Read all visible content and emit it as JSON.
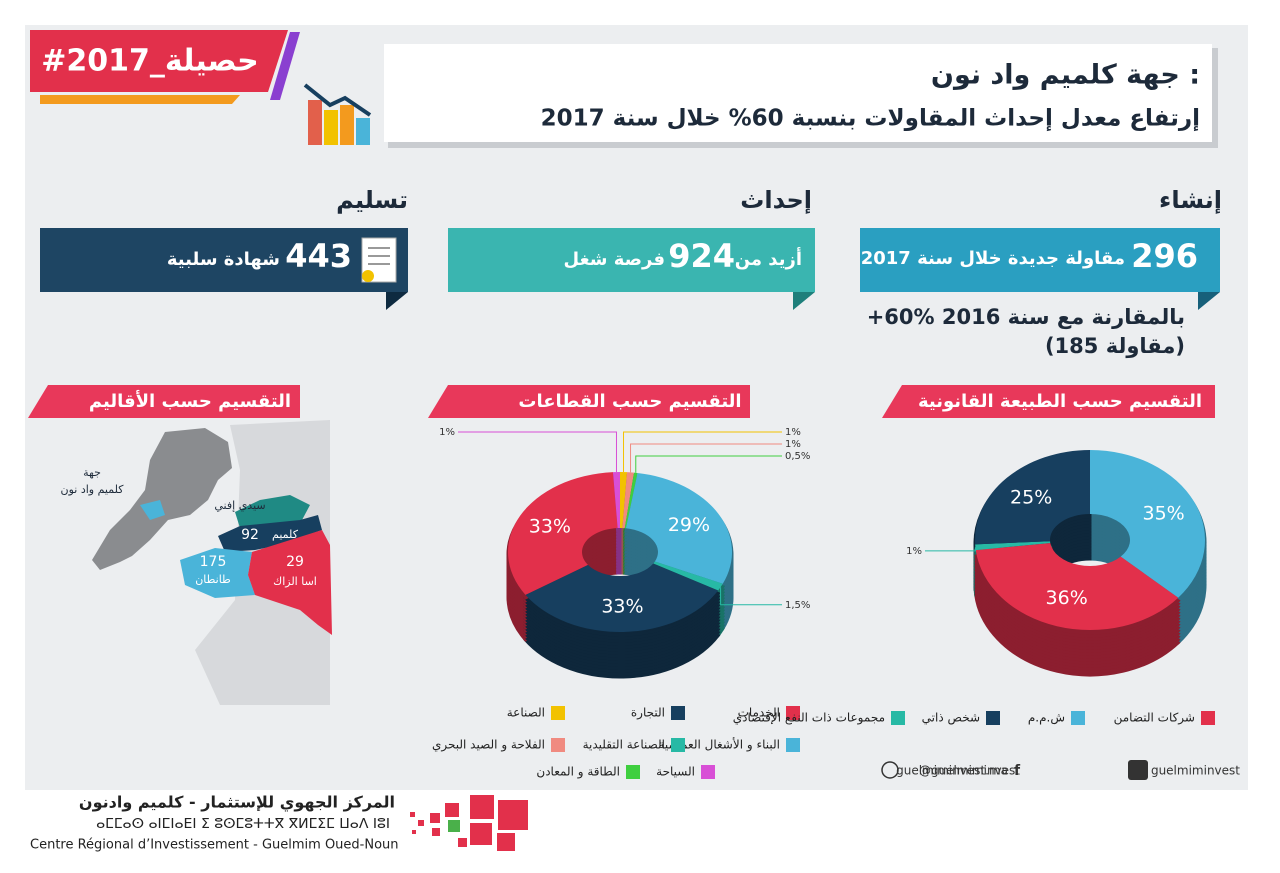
{
  "header": {
    "tag": "#حصيلة_2017",
    "title": "جهة كلميم واد نون :",
    "subtitle": "إرتفاع معدل إحداث المقاولات بنسبة 60% خلال سنة 2017"
  },
  "stats": [
    {
      "label": "إنشاء",
      "number": 296,
      "text": "مقاولة جديدة خلال سنة 2017"
    },
    {
      "label": "إحداث",
      "prefix": "أزيد من",
      "number": 924,
      "text": "فرصة شغل"
    },
    {
      "label": "تسليم",
      "number": 443,
      "text": "شهادة سلبية"
    }
  ],
  "comparison": {
    "line1": "+60% بالمقارنة مع سنة 2016",
    "line2": "(185 مقاولة)"
  },
  "map": {
    "title": "التقسيم حسب الأقاليم",
    "region_label": [
      "جهة",
      "كلميم واد نون"
    ],
    "provinces": [
      {
        "name": "كلميم",
        "count": 92
      },
      {
        "name": "طانطان",
        "count": 175
      },
      {
        "name": "اسا الزاك",
        "count": 29
      },
      {
        "name": "سيدي إفني"
      }
    ]
  },
  "chart_data": [
    {
      "type": "pie",
      "title": "التقسيم حسب القطاعات",
      "categories": [
        "الصناعة",
        "الفلاحة و الصيد البحري",
        "الطاقة و المعادن",
        "البناء و الأشغال العمومية",
        "الصناعة التقليدية",
        "التجارة",
        "الخدمات",
        "السياحة"
      ],
      "values": [
        1,
        1,
        0.5,
        29,
        1.5,
        33,
        33,
        1
      ],
      "value_labels": [
        "1%",
        "1%",
        "0,5%",
        "29%",
        "1,5%",
        "33%",
        "33%",
        "1%"
      ],
      "colors": [
        "#f2c200",
        "#f08a80",
        "#3fcf3f",
        "#4ab4d9",
        "#27b9a5",
        "#173f5f",
        "#e2304b",
        "#d84fd6"
      ]
    },
    {
      "type": "pie",
      "title": "التقسيم حسب الطبيعة القانونية",
      "categories": [
        "ش.م.م",
        "شركات التضامن",
        "مجموعات ذات النفع الإقتصادي",
        "شخص ذاتي"
      ],
      "values": [
        35,
        36,
        1,
        25
      ],
      "value_labels": [
        "35%",
        "36%",
        "1%",
        "25%"
      ],
      "colors": [
        "#4ab4d9",
        "#e2304b",
        "#27b9a5",
        "#173f5f"
      ]
    }
  ],
  "footer": {
    "links": [
      "guelmiminvest",
      "@guelmiminvest",
      "guelmiminvest.ma"
    ],
    "org_ar": "المركز الجهوي للإستثمار - كلميم وادنون",
    "org_tz": "ⴰⵎⵎⴰⵙ ⴰⵏⵎⵏⴰⴹⵏ ⵉ ⵓⵙⵎⵓⵜⵜⴳ ⴳⵍⵎⵉⵎ ⵡⴰⴷ ⵏⵓⵏ",
    "org_fr": "Centre Régional d’Investissement - Guelmim Oued-Noun"
  }
}
